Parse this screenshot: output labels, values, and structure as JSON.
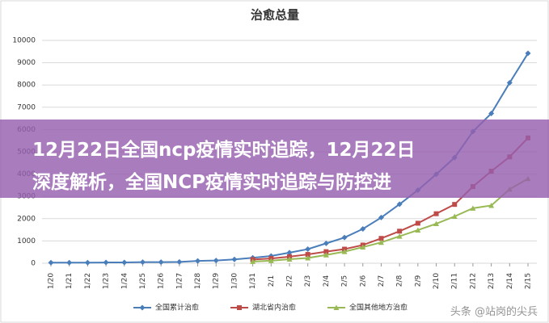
{
  "chart_data": {
    "type": "line",
    "title": "治愈总量",
    "categories": [
      "1/20",
      "1/21",
      "1/22",
      "1/23",
      "1/24",
      "1/25",
      "1/26",
      "1/27",
      "1/28",
      "1/29",
      "1/30",
      "1/31",
      "2/1",
      "2/2",
      "2/3",
      "2/4",
      "2/5",
      "2/6",
      "2/7",
      "2/8",
      "2/9",
      "2/10",
      "2/11",
      "2/12",
      "2/13",
      "2/14",
      "2/15"
    ],
    "series": [
      {
        "name": "全国累计治愈",
        "color": "#4a7ebb",
        "marker": "diamond",
        "values": [
          25,
          25,
          28,
          34,
          38,
          49,
          51,
          60,
          103,
          124,
          171,
          243,
          328,
          475,
          632,
          892,
          1153,
          1540,
          2050,
          2649,
          3281,
          3996,
          4740,
          5911,
          6723,
          8096,
          9419
        ]
      },
      {
        "name": "湖北省内治愈",
        "color": "#be4b48",
        "marker": "square",
        "values": [
          null,
          null,
          null,
          null,
          null,
          null,
          null,
          null,
          null,
          null,
          null,
          166,
          215,
          295,
          396,
          520,
          633,
          817,
          1115,
          1439,
          1795,
          2222,
          2639,
          3441,
          4131,
          4774,
          5623
        ]
      },
      {
        "name": "全国其他地方治愈",
        "color": "#98b954",
        "marker": "triangle",
        "values": [
          null,
          null,
          null,
          null,
          null,
          null,
          null,
          null,
          null,
          null,
          null,
          77,
          113,
          180,
          236,
          372,
          520,
          723,
          935,
          1210,
          1486,
          1774,
          2101,
          2470,
          2592,
          3322,
          3796
        ]
      }
    ],
    "ylim": [
      0,
      10000
    ],
    "yticks": [
      0,
      1000,
      2000,
      3000,
      4000,
      5000,
      6000,
      7000,
      8000,
      9000,
      10000
    ],
    "grid": true,
    "legend": "bottom"
  },
  "overlay": {
    "line1": "12月22日全国ncp疫情实时追踪，12月22日",
    "line2": "深度解析，全国NCP疫情实时追踪与防控进"
  },
  "watermark": "头条 @站岗的尖兵"
}
